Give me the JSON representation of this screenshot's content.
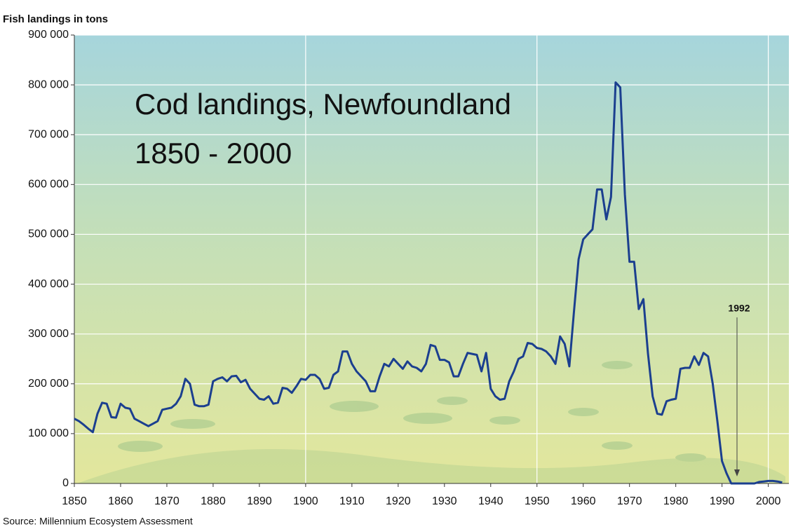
{
  "chart_data": {
    "type": "line",
    "y_label": "Fish landings in tons",
    "source": "Source: Millennium Ecosystem Assessment",
    "annotations": [
      "Cod landings, Newfoundland",
      "1850 - 2000",
      "1992"
    ],
    "color": "#1b3f8f",
    "xlim": [
      1850,
      2004
    ],
    "xticks": [
      1850,
      1860,
      1870,
      1880,
      1890,
      1900,
      1910,
      1920,
      1930,
      1940,
      1950,
      1960,
      1970,
      1980,
      1990,
      2000
    ],
    "ylim": [
      0,
      900000
    ],
    "yticks": [
      0,
      {
        "value": 100000,
        "label": "100 000"
      },
      {
        "value": 200000,
        "label": "200 000"
      },
      {
        "value": 300000,
        "label": "300 000"
      },
      {
        "value": 400000,
        "label": "400 000"
      },
      {
        "value": 500000,
        "label": "500 000"
      },
      {
        "value": 600000,
        "label": "600 000"
      },
      {
        "value": 700000,
        "label": "700 000"
      },
      {
        "value": 800000,
        "label": "800 000"
      },
      {
        "value": 900000,
        "label": "900 000"
      }
    ],
    "grid": true,
    "x": [
      1850,
      1851,
      1852,
      1853,
      1854,
      1855,
      1856,
      1857,
      1858,
      1859,
      1860,
      1861,
      1862,
      1863,
      1864,
      1865,
      1866,
      1867,
      1868,
      1869,
      1870,
      1871,
      1872,
      1873,
      1874,
      1875,
      1876,
      1877,
      1878,
      1879,
      1880,
      1881,
      1882,
      1883,
      1884,
      1885,
      1886,
      1887,
      1888,
      1889,
      1890,
      1891,
      1892,
      1893,
      1894,
      1895,
      1896,
      1897,
      1898,
      1899,
      1900,
      1901,
      1902,
      1903,
      1904,
      1905,
      1906,
      1907,
      1908,
      1909,
      1910,
      1911,
      1912,
      1913,
      1914,
      1915,
      1916,
      1917,
      1918,
      1919,
      1920,
      1921,
      1922,
      1923,
      1924,
      1925,
      1926,
      1927,
      1928,
      1929,
      1930,
      1931,
      1932,
      1933,
      1934,
      1935,
      1936,
      1937,
      1938,
      1939,
      1940,
      1941,
      1942,
      1943,
      1944,
      1945,
      1946,
      1947,
      1948,
      1949,
      1950,
      1951,
      1952,
      1953,
      1954,
      1955,
      1956,
      1957,
      1958,
      1959,
      1960,
      1961,
      1962,
      1963,
      1964,
      1965,
      1966,
      1967,
      1968,
      1969,
      1970,
      1971,
      1972,
      1973,
      1974,
      1975,
      1976,
      1977,
      1978,
      1979,
      1980,
      1981,
      1982,
      1983,
      1984,
      1985,
      1986,
      1987,
      1988,
      1989,
      1990,
      1991,
      1992,
      1993,
      1994,
      1995,
      1996,
      1997,
      1998,
      1999,
      2000,
      2001,
      2002,
      2003
    ],
    "values": [
      130000,
      125000,
      118000,
      110000,
      103000,
      140000,
      162000,
      160000,
      133000,
      132000,
      160000,
      152000,
      150000,
      130000,
      125000,
      120000,
      115000,
      120000,
      125000,
      148000,
      150000,
      152000,
      160000,
      175000,
      210000,
      200000,
      158000,
      155000,
      155000,
      158000,
      205000,
      210000,
      213000,
      205000,
      215000,
      216000,
      203000,
      208000,
      190000,
      180000,
      170000,
      168000,
      175000,
      160000,
      162000,
      192000,
      190000,
      182000,
      195000,
      210000,
      208000,
      218000,
      218000,
      210000,
      190000,
      192000,
      218000,
      225000,
      265000,
      265000,
      240000,
      225000,
      215000,
      205000,
      185000,
      185000,
      215000,
      240000,
      235000,
      250000,
      240000,
      230000,
      245000,
      235000,
      232000,
      225000,
      240000,
      278000,
      275000,
      248000,
      248000,
      243000,
      215000,
      215000,
      240000,
      262000,
      260000,
      258000,
      225000,
      262000,
      190000,
      175000,
      168000,
      170000,
      205000,
      225000,
      250000,
      255000,
      282000,
      280000,
      272000,
      270000,
      265000,
      255000,
      240000,
      295000,
      280000,
      235000,
      345000,
      450000,
      490000,
      500000,
      510000,
      590000,
      590000,
      530000,
      575000,
      805000,
      795000,
      580000,
      445000,
      445000,
      350000,
      370000,
      260000,
      175000,
      140000,
      138000,
      165000,
      168000,
      170000,
      230000,
      232000,
      232000,
      255000,
      238000,
      262000,
      255000,
      200000,
      125000,
      45000,
      20000,
      0,
      0,
      0,
      0,
      0,
      0,
      3000,
      4000,
      5000,
      5000,
      4000,
      2000
    ]
  }
}
